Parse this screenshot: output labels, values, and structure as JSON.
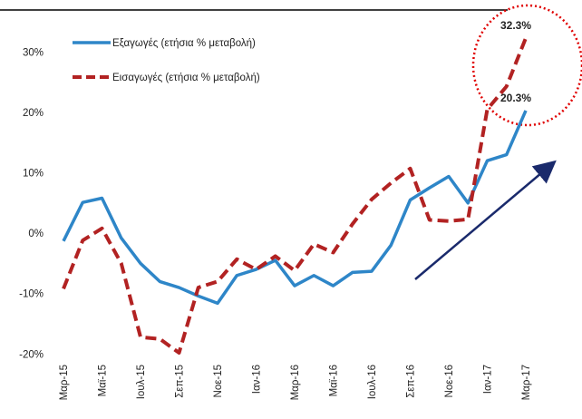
{
  "chart_data": {
    "type": "line",
    "categories": [
      "Μαρ-15",
      null,
      "Μαϊ-15",
      null,
      "Ιουλ-15",
      null,
      "Σεπ-15",
      null,
      "Νοε-15",
      null,
      "Ιαν-16",
      null,
      "Μαρ-16",
      null,
      "Μαϊ-16",
      null,
      "Ιουλ-16",
      null,
      "Σεπ-16",
      null,
      "Νοε-16",
      null,
      "Ιαν-17",
      null,
      "Μαρ-17"
    ],
    "series": [
      {
        "name": "Εξαγωγές (ετήσια % μεταβολή)",
        "color": "#2e86c8",
        "dashed": false,
        "values": [
          -1.3,
          5.1,
          5.8,
          -0.8,
          -5,
          -8,
          -9,
          -10.4,
          -11.6,
          -7,
          -6,
          -4.5,
          -8.7,
          -7,
          -8.7,
          -6.5,
          -6.3,
          -2,
          5.5,
          7.5,
          9.4,
          5,
          12,
          13,
          20.3
        ],
        "value_labels": [
          null,
          null,
          null,
          null,
          null,
          null,
          null,
          null,
          null,
          null,
          null,
          null,
          null,
          null,
          null,
          null,
          null,
          null,
          null,
          null,
          null,
          null,
          null,
          null,
          "20.3%"
        ]
      },
      {
        "name": "Εισαγωγές (ετήσια % μεταβολή)",
        "color": "#b22222",
        "dashed": true,
        "values": [
          -9.2,
          -1.2,
          0.8,
          -5,
          -17.2,
          -17.5,
          -19.8,
          -9,
          -8,
          -4.3,
          -6,
          -3.8,
          -6.2,
          -1.8,
          -3.2,
          1.5,
          5.6,
          8.3,
          10.7,
          2.2,
          2,
          2.3,
          20.5,
          24.3,
          32.3
        ],
        "value_labels": [
          null,
          null,
          null,
          null,
          null,
          null,
          null,
          null,
          null,
          null,
          null,
          null,
          null,
          null,
          null,
          null,
          null,
          null,
          null,
          null,
          null,
          null,
          null,
          null,
          "32.3%"
        ]
      }
    ],
    "ylim": [
      -21,
      35
    ],
    "yticks": [
      {
        "value": -20,
        "label": "-20%"
      },
      {
        "value": -10,
        "label": "-10%"
      },
      {
        "value": 0,
        "label": "0%"
      },
      {
        "value": 10,
        "label": "10%"
      },
      {
        "value": 20,
        "label": "20%"
      },
      {
        "value": 30,
        "label": "30%"
      }
    ],
    "grid": false,
    "legend": "top-left"
  }
}
